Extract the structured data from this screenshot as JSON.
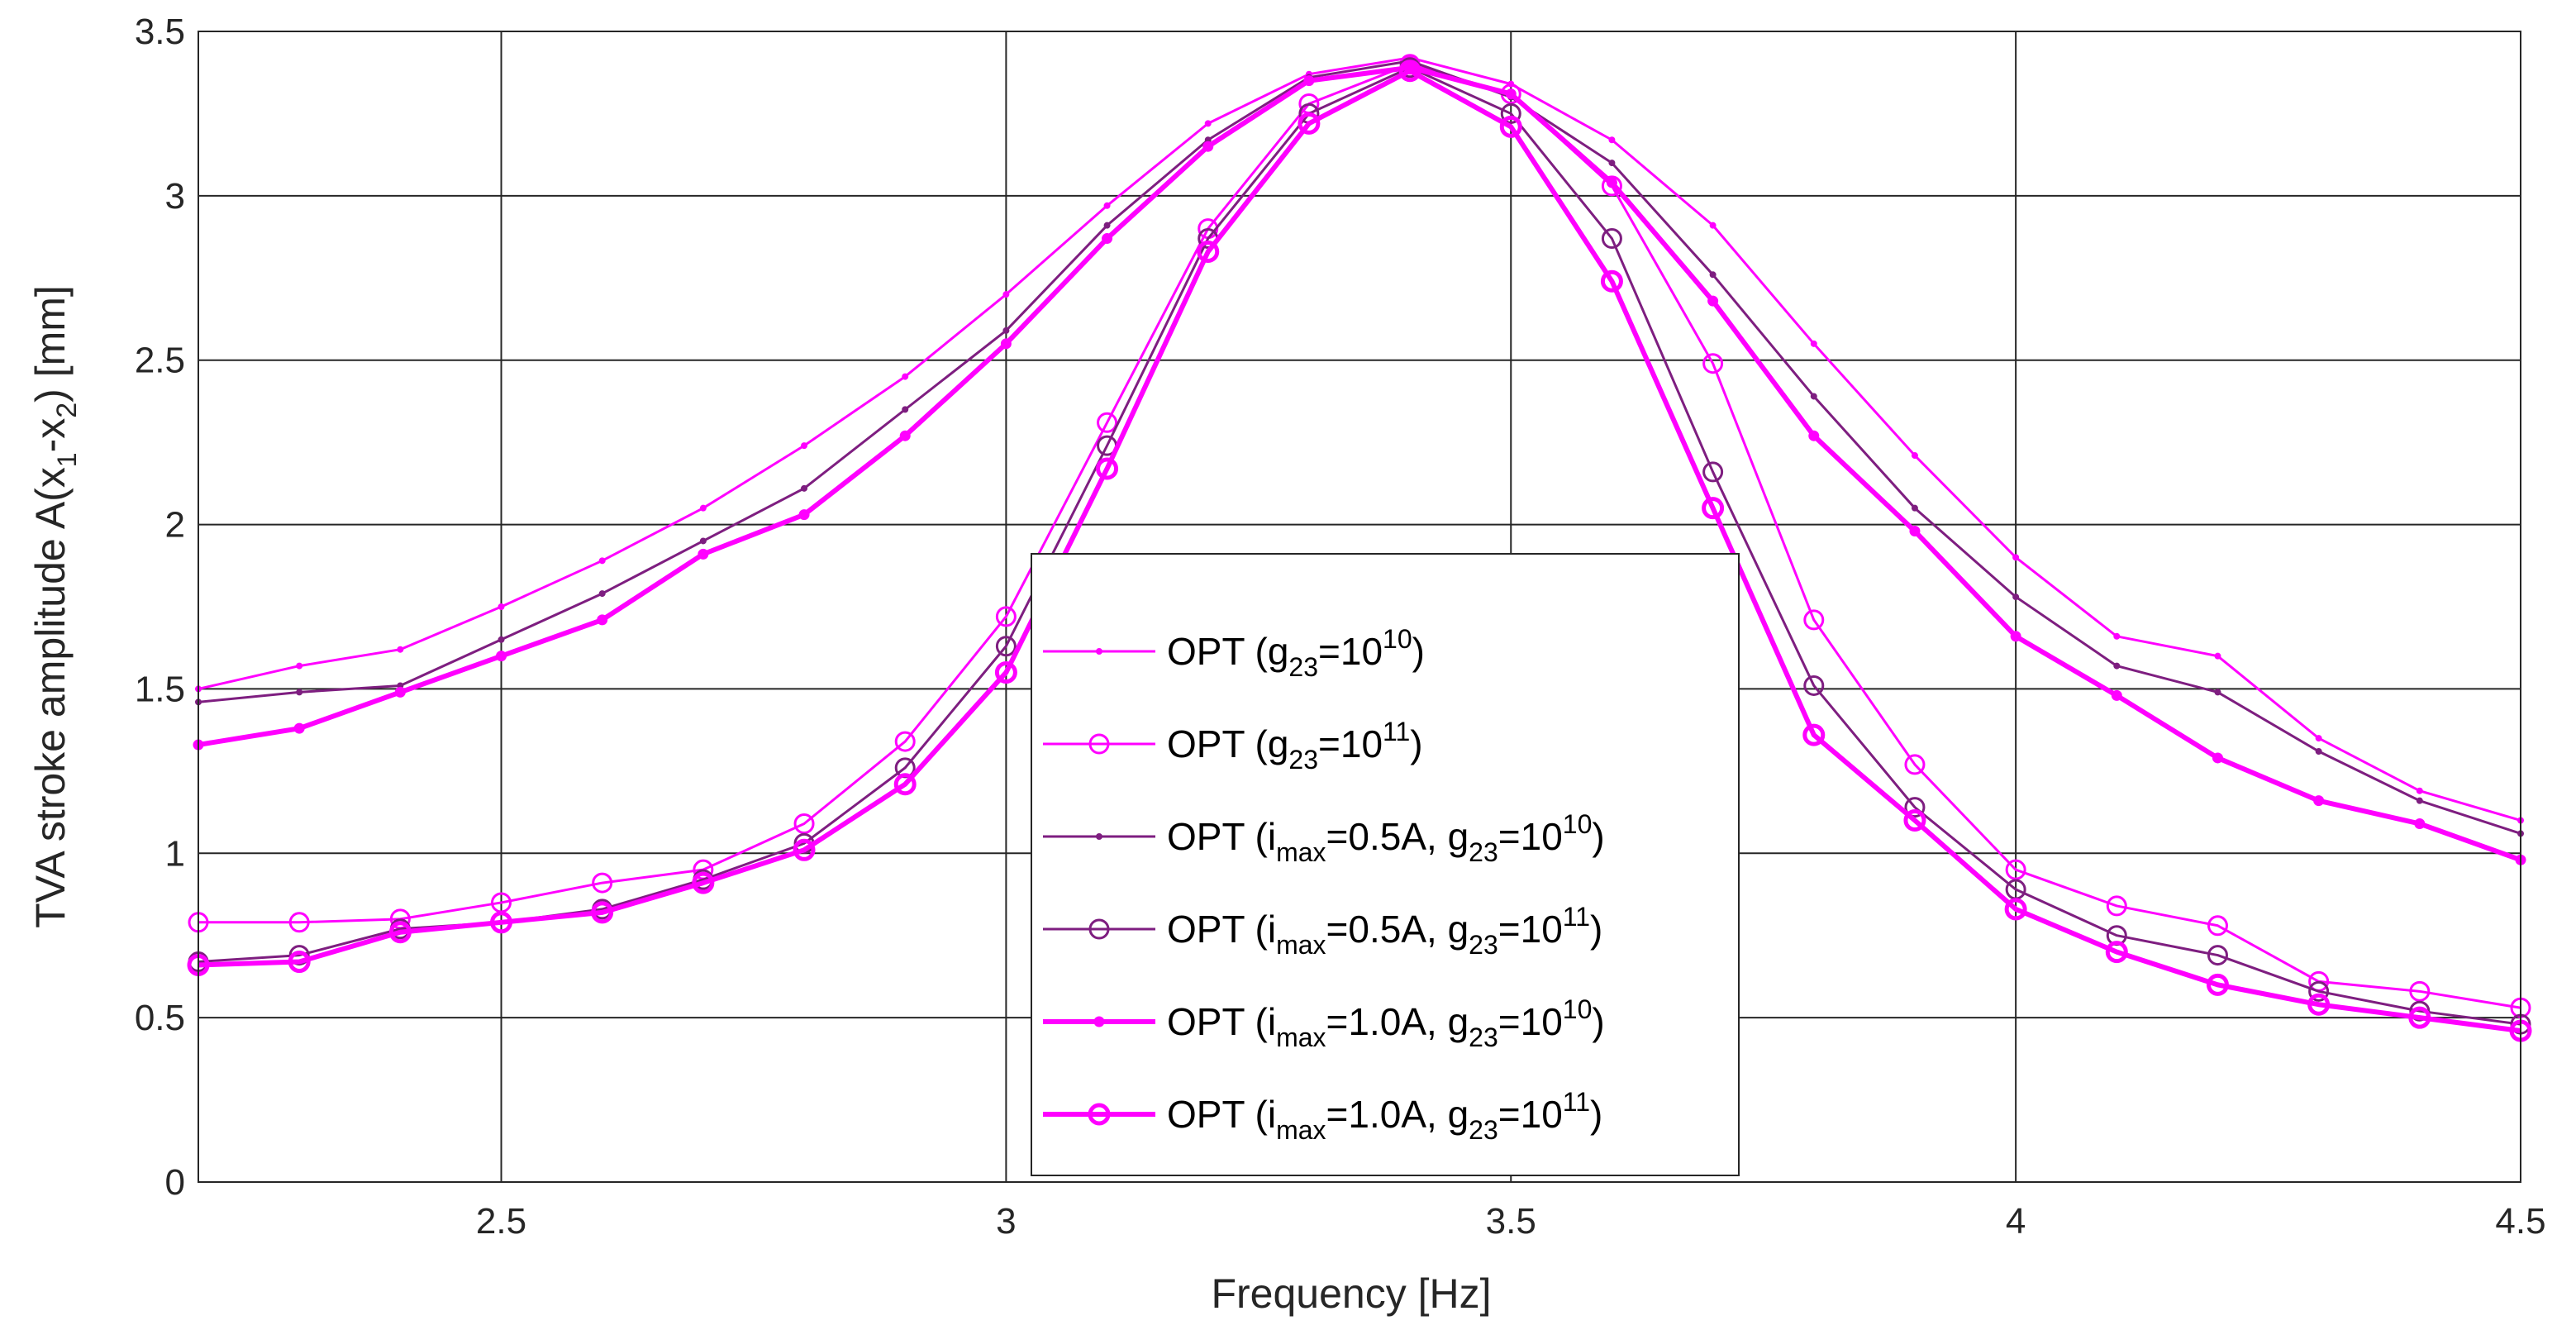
{
  "chart_data": {
    "type": "line",
    "title": "",
    "xlabel": "Frequency [Hz]",
    "ylabel": {
      "main": "TVA stroke amplitude A(x",
      "sub1": "1",
      "mid": "-x",
      "sub2": "2",
      "end": ") [mm]"
    },
    "xlim": [
      2.2,
      4.5
    ],
    "ylim": [
      0,
      3.5
    ],
    "xticks": [
      2.5,
      3,
      3.5,
      4,
      4.5
    ],
    "xtick_labels": [
      "2.5",
      "3",
      "3.5",
      "4",
      "4.5"
    ],
    "yticks": [
      0,
      0.5,
      1,
      1.5,
      2,
      2.5,
      3,
      3.5
    ],
    "ytick_labels": [
      "0",
      "0.5",
      "1",
      "1.5",
      "2",
      "2.5",
      "3",
      "3.5"
    ],
    "grid": true,
    "legend_position": "center-lower",
    "x": [
      2.2,
      2.3,
      2.4,
      2.5,
      2.6,
      2.7,
      2.8,
      2.9,
      3.0,
      3.1,
      3.2,
      3.3,
      3.4,
      3.5,
      3.6,
      3.7,
      3.8,
      3.9,
      4.0,
      4.1,
      4.2,
      4.3,
      4.4,
      4.5
    ],
    "series": [
      {
        "name": "OPT (g23=10^10)",
        "legend": {
          "pre": "OPT (g",
          "sub": "23",
          "mid": "=10",
          "sup": "10",
          "post": ")"
        },
        "color": "#ff00ff",
        "width": 3,
        "marker": "dot",
        "values": [
          1.5,
          1.57,
          1.62,
          1.75,
          1.89,
          2.05,
          2.24,
          2.45,
          2.7,
          2.97,
          3.22,
          3.37,
          3.42,
          3.34,
          3.17,
          2.91,
          2.55,
          2.21,
          1.9,
          1.66,
          1.6,
          1.35,
          1.19,
          1.1
        ]
      },
      {
        "name": "OPT (g23=10^11)",
        "legend": {
          "pre": "OPT (g",
          "sub": "23",
          "mid": "=10",
          "sup": "11",
          "post": ")"
        },
        "color": "#ff00ff",
        "width": 3,
        "marker": "circle",
        "values": [
          0.79,
          0.79,
          0.8,
          0.85,
          0.91,
          0.95,
          1.09,
          1.34,
          1.72,
          2.31,
          2.9,
          3.28,
          3.4,
          3.31,
          3.03,
          2.49,
          1.71,
          1.27,
          0.95,
          0.84,
          0.78,
          0.61,
          0.58,
          0.53
        ]
      },
      {
        "name": "OPT (imax=0.5A, g23=10^10)",
        "legend": {
          "pre": "OPT (i",
          "sub": "max",
          "mid": "=0.5A, g",
          "sub2": "23",
          "mid2": "=10",
          "sup": "10",
          "post": ")"
        },
        "color": "#7e1e80",
        "width": 3,
        "marker": "dot",
        "values": [
          1.46,
          1.49,
          1.51,
          1.65,
          1.79,
          1.95,
          2.11,
          2.35,
          2.59,
          2.91,
          3.17,
          3.36,
          3.41,
          3.3,
          3.1,
          2.76,
          2.39,
          2.05,
          1.78,
          1.57,
          1.49,
          1.31,
          1.16,
          1.06
        ]
      },
      {
        "name": "OPT (imax=0.5A, g23=10^11)",
        "legend": {
          "pre": "OPT (i",
          "sub": "max",
          "mid": "=0.5A, g",
          "sub2": "23",
          "mid2": "=10",
          "sup": "11",
          "post": ")"
        },
        "color": "#7e1e80",
        "width": 3,
        "marker": "circle",
        "values": [
          0.67,
          0.69,
          0.77,
          0.79,
          0.83,
          0.92,
          1.03,
          1.26,
          1.63,
          2.24,
          2.87,
          3.25,
          3.39,
          3.25,
          2.87,
          2.16,
          1.51,
          1.14,
          0.89,
          0.75,
          0.69,
          0.58,
          0.52,
          0.48
        ]
      },
      {
        "name": "OPT (imax=1.0A, g23=10^10)",
        "legend": {
          "pre": "OPT (i",
          "sub": "max",
          "mid": "=1.0A, g",
          "sub2": "23",
          "mid2": "=10",
          "sup": "10",
          "post": ")"
        },
        "color": "#ff00ff",
        "width": 6,
        "marker": "dot",
        "values": [
          1.33,
          1.38,
          1.49,
          1.6,
          1.71,
          1.91,
          2.03,
          2.27,
          2.55,
          2.87,
          3.15,
          3.35,
          3.39,
          3.31,
          3.04,
          2.68,
          2.27,
          1.98,
          1.66,
          1.48,
          1.29,
          1.16,
          1.09,
          0.98
        ]
      },
      {
        "name": "OPT (imax=1.0A, g23=10^11)",
        "legend": {
          "pre": "OPT (i",
          "sub": "max",
          "mid": "=1.0A, g",
          "sub2": "23",
          "mid2": "=10",
          "sup": "11",
          "post": ")"
        },
        "color": "#ff00ff",
        "width": 6,
        "marker": "circle",
        "values": [
          0.66,
          0.67,
          0.76,
          0.79,
          0.82,
          0.91,
          1.01,
          1.21,
          1.55,
          2.17,
          2.83,
          3.22,
          3.38,
          3.21,
          2.74,
          2.05,
          1.36,
          1.1,
          0.83,
          0.7,
          0.6,
          0.54,
          0.5,
          0.46
        ]
      }
    ]
  }
}
